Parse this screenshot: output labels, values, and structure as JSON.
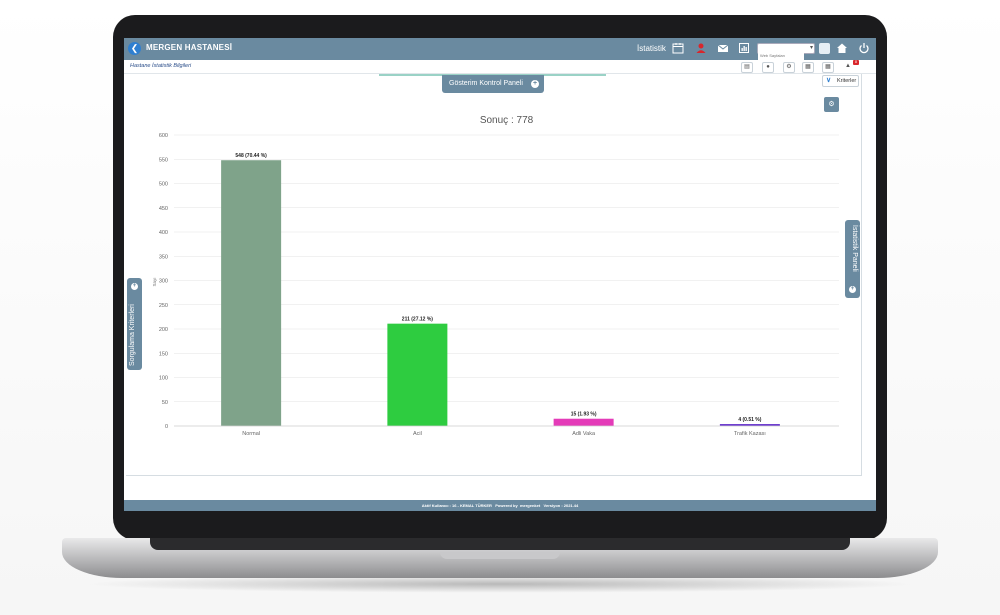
{
  "header": {
    "back_icon": "chevron-left-icon",
    "app_title": "MERGEN HASTANESİ",
    "menu_name": "İstatistik",
    "search_placeholder": "Web Sayfaları",
    "icons": [
      "calendar-icon",
      "user-icon",
      "mail-icon",
      "report-icon",
      "home-icon",
      "power-icon"
    ]
  },
  "subheader": {
    "breadcrumb": "Hastane İstatistik Bilgileri",
    "notification_count": "8"
  },
  "panels": {
    "top_tab": "Gösterim Kontrol Paneli",
    "kriterler": "Kriterler",
    "left_tab": "Sorgulama Kriterleri",
    "right_tab": "İstatistik Paneli"
  },
  "chart_data": {
    "type": "bar",
    "title": "Sonuç : 778",
    "ylabel": "Sayı",
    "categories": [
      "Normal",
      "Acil",
      "Adli Vaka",
      "Trafik Kazası"
    ],
    "values": [
      548,
      211,
      15,
      4
    ],
    "data_labels": [
      "548 (70.44 %)",
      "211 (27.12 %)",
      "15 (1.93 %)",
      "4 (0.51 %)"
    ],
    "colors": [
      "#7fa38a",
      "#2ecc40",
      "#e43bb8",
      "#6633cc"
    ],
    "ylim": [
      0,
      600
    ],
    "yticks": [
      0,
      50,
      100,
      150,
      200,
      250,
      300,
      350,
      400,
      450,
      500,
      550,
      600
    ],
    "grid": true
  },
  "footer": {
    "active_users": "Aktif Kullanıcı : 16 - KEMAL TÜRKER",
    "powered_by": "Powered by",
    "brand": "mergenket",
    "version": "Versiyon : 2021.44"
  },
  "colors": {
    "header_bg": "#6a8aa0",
    "accent_blue": "#2f7fd0"
  }
}
